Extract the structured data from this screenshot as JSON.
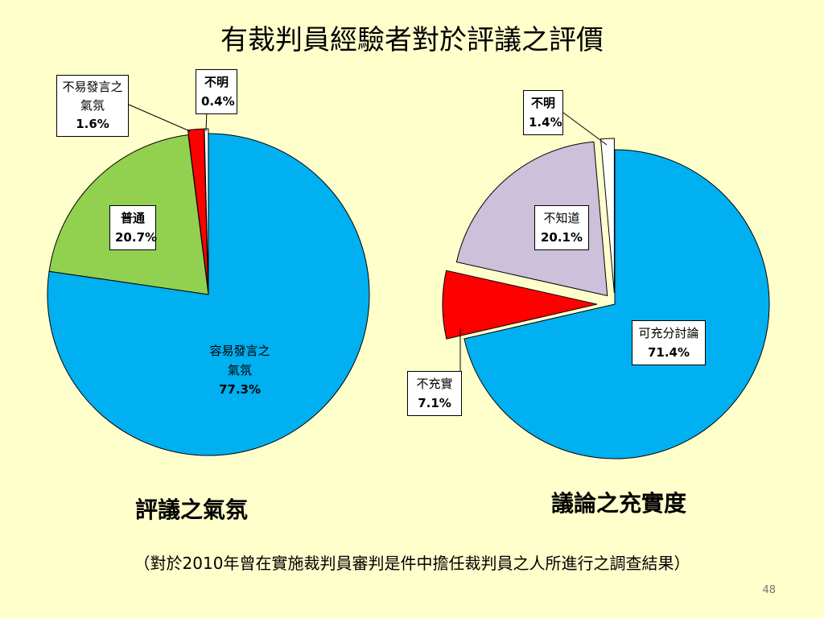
{
  "title": "有裁判員經驗者對於評議之評價",
  "chart_data": [
    {
      "type": "pie",
      "title": "評議之氣氛",
      "slices": [
        {
          "label": "容易發言之氣氛",
          "value": 77.3,
          "value_label": "77.3%",
          "color": "#00B0F0"
        },
        {
          "label": "普通",
          "value": 20.7,
          "value_label": "20.7%",
          "color": "#92D050"
        },
        {
          "label": "不易發言之氣氛",
          "value": 1.6,
          "value_label": "1.6%",
          "color": "#FF0000"
        },
        {
          "label": "不明",
          "value": 0.4,
          "value_label": "0.4%",
          "color": "#FFFFFF"
        }
      ]
    },
    {
      "type": "pie",
      "title": "議論之充實度",
      "slices": [
        {
          "label": "可充分討論",
          "value": 71.4,
          "value_label": "71.4%",
          "color": "#00B0F0"
        },
        {
          "label": "不充實",
          "value": 7.1,
          "value_label": "7.1%",
          "color": "#FF0000"
        },
        {
          "label": "不知道",
          "value": 20.1,
          "value_label": "20.1%",
          "color": "#CCC0DA"
        },
        {
          "label": "不明",
          "value": 1.4,
          "value_label": "1.4%",
          "color": "#FFFFFF"
        }
      ]
    }
  ],
  "footnote": "（對於2010年曾在實施裁判員審判是件中擔任裁判員之人所進行之調查結果）",
  "page_number": "48"
}
